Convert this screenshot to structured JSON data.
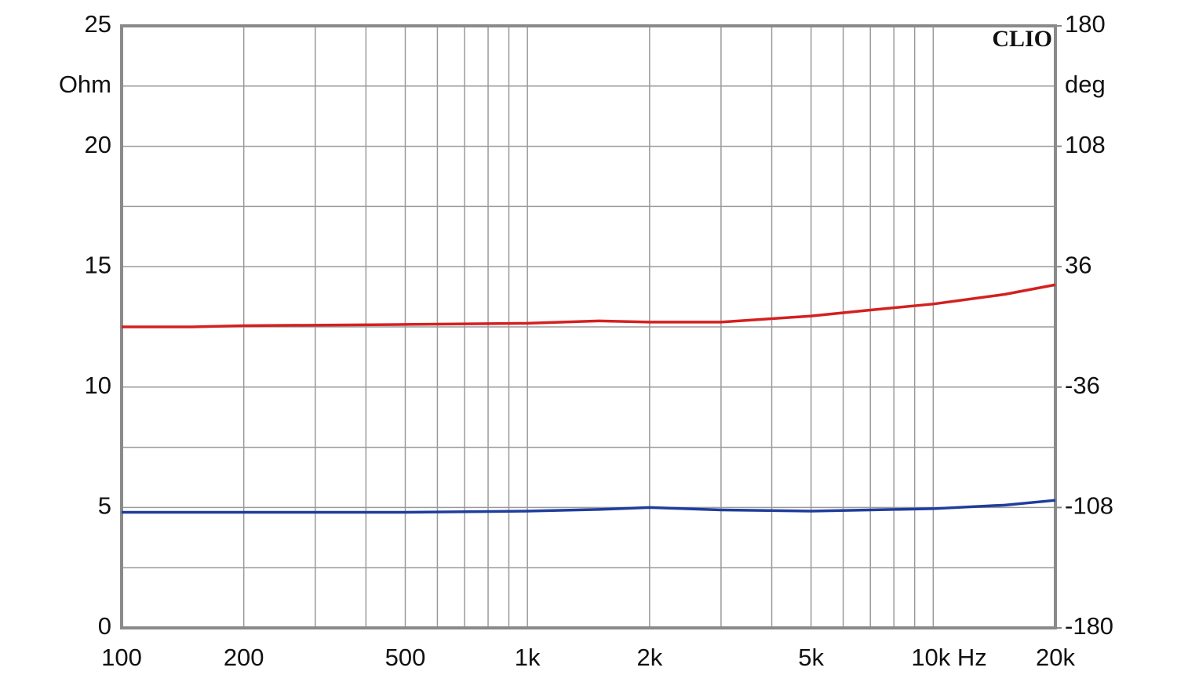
{
  "chart_data": {
    "type": "line",
    "y_label": "Ohm",
    "y2_label": "deg",
    "annotation": "CLIO",
    "x": [
      100,
      150,
      200,
      500,
      1000,
      1500,
      2000,
      3000,
      5000,
      7000,
      10000,
      15000,
      20000
    ],
    "series": [
      {
        "color": "#d42020",
        "values": [
          12.5,
          12.5,
          12.55,
          12.6,
          12.65,
          12.75,
          12.7,
          12.7,
          12.95,
          13.2,
          13.45,
          13.85,
          14.25
        ]
      },
      {
        "color": "#1f3d9c",
        "values": [
          4.8,
          4.8,
          4.8,
          4.8,
          4.85,
          4.92,
          5.0,
          4.9,
          4.85,
          4.9,
          4.95,
          5.1,
          5.3
        ]
      }
    ],
    "xlog": true,
    "xlim": [
      100,
      20000
    ],
    "xticks": [
      100,
      200,
      500,
      {
        "value": 1000,
        "label": "1k"
      },
      {
        "value": 2000,
        "label": "2k"
      },
      {
        "value": 5000,
        "label": "5k"
      },
      {
        "value": 10000,
        "label": "10k Hz"
      },
      {
        "value": 20000,
        "label": "20k"
      }
    ],
    "xminor": [
      300,
      400,
      600,
      700,
      800,
      900,
      3000,
      4000,
      6000,
      7000,
      8000,
      9000
    ],
    "ylim": [
      0,
      25
    ],
    "yticks": [
      0,
      5,
      10,
      15,
      20,
      25
    ],
    "yminor": [
      2.5,
      7.5,
      12.5,
      17.5,
      22.5
    ],
    "y2lim": [
      -180,
      180
    ],
    "y2ticks": [
      -180,
      -108,
      -36,
      36,
      108,
      180
    ],
    "grid": true
  }
}
